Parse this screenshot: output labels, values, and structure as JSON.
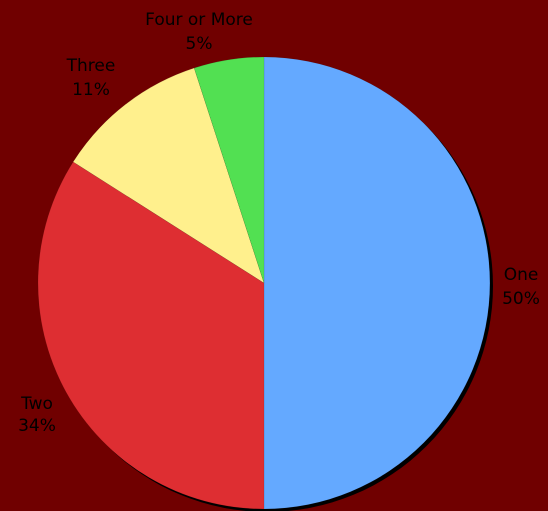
{
  "chart_data": {
    "type": "pie",
    "title": "",
    "start_angle_deg": 0,
    "direction": "clockwise",
    "slices": [
      {
        "label": "One",
        "value": 50,
        "percent_label": "50%",
        "color": "#64a9ff"
      },
      {
        "label": "Two",
        "value": 34,
        "percent_label": "34%",
        "color": "#de2e32"
      },
      {
        "label": "Three",
        "value": 11,
        "percent_label": "11%",
        "color": "#fff08d"
      },
      {
        "label": "Four or More",
        "value": 5,
        "percent_label": "5%",
        "color": "#52e052"
      }
    ]
  },
  "colors": {
    "background": "#700000",
    "shadow": "#000000",
    "edge": "#3a0000"
  }
}
